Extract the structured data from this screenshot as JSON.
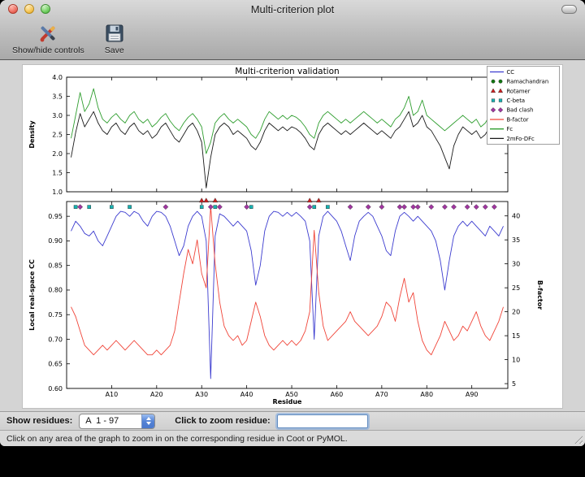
{
  "window": {
    "title": "Multi-criterion plot"
  },
  "toolbar": {
    "show_hide_label": "Show/hide controls",
    "save_label": "Save"
  },
  "controls": {
    "show_residues_label": "Show residues:",
    "residue_range_value": "A  1 - 97",
    "zoom_label": "Click to zoom residue:",
    "zoom_input_value": ""
  },
  "statusbar": {
    "text": "Click on any area of the graph to zoom in on the corresponding residue in Coot or PyMOL."
  },
  "chart_data": {
    "type": "line",
    "title": "Multi-criterion validation",
    "xlabel": "Residue",
    "xlim": [
      0,
      98
    ],
    "residues": {
      "start": 1,
      "end": 97,
      "chain": "A"
    },
    "xticks": [
      10,
      20,
      30,
      40,
      50,
      60,
      70,
      80,
      90
    ],
    "xtick_labels": [
      "A10",
      "A20",
      "A30",
      "A40",
      "A50",
      "A60",
      "A70",
      "A80",
      "A90"
    ],
    "subplots": [
      {
        "ylabel": "Density",
        "ylim": [
          1.0,
          4.0
        ],
        "yticks": [
          1.0,
          1.5,
          2.0,
          2.5,
          3.0,
          3.5,
          4.0
        ],
        "ytick_labels": [
          "1.0",
          "1.5",
          "2.0",
          "2.5",
          "3.0",
          "3.5",
          "4.0"
        ],
        "series": [
          {
            "name": "Fc",
            "color": "#2f9e2f",
            "axis": "left",
            "values": [
              2.4,
              3.0,
              3.6,
              3.1,
              3.3,
              3.7,
              3.2,
              2.9,
              2.8,
              2.95,
              3.05,
              2.9,
              2.8,
              3.0,
              3.1,
              2.9,
              2.8,
              2.9,
              2.7,
              2.8,
              2.95,
              3.05,
              2.85,
              2.7,
              2.6,
              2.8,
              2.95,
              3.05,
              2.9,
              2.7,
              2.0,
              2.3,
              2.8,
              2.95,
              3.05,
              2.9,
              2.8,
              2.9,
              2.8,
              2.7,
              2.5,
              2.4,
              2.6,
              2.9,
              3.1,
              3.0,
              2.9,
              3.0,
              2.9,
              3.0,
              2.95,
              2.85,
              2.7,
              2.5,
              2.4,
              2.8,
              3.0,
              3.1,
              3.0,
              2.9,
              2.8,
              2.9,
              2.8,
              2.9,
              3.0,
              3.1,
              3.0,
              2.9,
              2.8,
              2.9,
              2.8,
              2.7,
              2.9,
              3.0,
              3.2,
              3.5,
              3.0,
              3.1,
              3.4,
              3.0,
              2.9,
              2.8,
              2.7,
              2.6,
              2.7,
              2.8,
              2.9,
              3.0,
              2.9,
              2.8,
              2.9,
              2.7,
              2.8,
              3.0,
              3.3,
              2.9,
              3.1
            ]
          },
          {
            "name": "2mFo-DFc",
            "color": "#1a1a1a",
            "axis": "left",
            "values": [
              1.9,
              2.55,
              3.05,
              2.7,
              2.9,
              3.1,
              2.8,
              2.6,
              2.5,
              2.7,
              2.8,
              2.6,
              2.5,
              2.7,
              2.8,
              2.6,
              2.5,
              2.6,
              2.4,
              2.5,
              2.7,
              2.8,
              2.6,
              2.4,
              2.3,
              2.5,
              2.7,
              2.8,
              2.6,
              2.3,
              1.1,
              1.9,
              2.5,
              2.7,
              2.8,
              2.7,
              2.5,
              2.6,
              2.5,
              2.4,
              2.2,
              2.1,
              2.3,
              2.6,
              2.8,
              2.7,
              2.6,
              2.7,
              2.6,
              2.7,
              2.65,
              2.55,
              2.4,
              2.2,
              2.1,
              2.5,
              2.7,
              2.8,
              2.7,
              2.6,
              2.5,
              2.6,
              2.5,
              2.6,
              2.7,
              2.8,
              2.7,
              2.6,
              2.5,
              2.6,
              2.5,
              2.4,
              2.6,
              2.7,
              2.9,
              3.1,
              2.7,
              2.8,
              3.0,
              2.7,
              2.6,
              2.4,
              2.2,
              1.9,
              1.6,
              2.2,
              2.5,
              2.7,
              2.6,
              2.5,
              2.6,
              2.4,
              2.5,
              2.7,
              3.0,
              2.6,
              2.8
            ]
          }
        ]
      },
      {
        "ylabel": "Local real-space CC",
        "ylim": [
          0.6,
          0.98
        ],
        "yticks": [
          0.6,
          0.65,
          0.7,
          0.75,
          0.8,
          0.85,
          0.9,
          0.95
        ],
        "ytick_labels": [
          "0.60",
          "0.65",
          "0.70",
          "0.75",
          "0.80",
          "0.85",
          "0.90",
          "0.95"
        ],
        "right_ylabel": "B-factor",
        "right_ylim": [
          4,
          43
        ],
        "right_yticks": [
          5,
          10,
          15,
          20,
          25,
          30,
          35,
          40
        ],
        "right_ytick_labels": [
          "5",
          "10",
          "15",
          "20",
          "25",
          "30",
          "35",
          "40"
        ],
        "series": [
          {
            "name": "CC",
            "color": "#3b3bcf",
            "axis": "left",
            "values": [
              0.92,
              0.94,
              0.93,
              0.915,
              0.91,
              0.92,
              0.9,
              0.89,
              0.91,
              0.93,
              0.95,
              0.96,
              0.958,
              0.95,
              0.96,
              0.955,
              0.94,
              0.93,
              0.95,
              0.96,
              0.958,
              0.95,
              0.93,
              0.9,
              0.87,
              0.89,
              0.93,
              0.95,
              0.96,
              0.95,
              0.9,
              0.62,
              0.91,
              0.955,
              0.95,
              0.94,
              0.93,
              0.94,
              0.93,
              0.92,
              0.88,
              0.81,
              0.85,
              0.92,
              0.95,
              0.96,
              0.958,
              0.95,
              0.958,
              0.95,
              0.958,
              0.95,
              0.94,
              0.9,
              0.7,
              0.91,
              0.95,
              0.96,
              0.95,
              0.94,
              0.92,
              0.89,
              0.86,
              0.91,
              0.94,
              0.95,
              0.958,
              0.95,
              0.93,
              0.91,
              0.88,
              0.87,
              0.92,
              0.95,
              0.958,
              0.95,
              0.94,
              0.95,
              0.94,
              0.93,
              0.92,
              0.9,
              0.86,
              0.8,
              0.86,
              0.91,
              0.93,
              0.94,
              0.93,
              0.94,
              0.93,
              0.92,
              0.91,
              0.93,
              0.92,
              0.91,
              0.93
            ]
          },
          {
            "name": "B-factor",
            "color": "#f04438",
            "axis": "right",
            "values": [
              21,
              19,
              16,
              13,
              12,
              11,
              12,
              13,
              12,
              13,
              14,
              13,
              12,
              13,
              14,
              13,
              12,
              11,
              11,
              12,
              11,
              12,
              13,
              16,
              22,
              28,
              33,
              30,
              35,
              28,
              25,
              42,
              30,
              22,
              17,
              15,
              14,
              15,
              13,
              14,
              18,
              22,
              19,
              15,
              13,
              12,
              13,
              14,
              13,
              14,
              13,
              14,
              16,
              20,
              37,
              24,
              17,
              14,
              15,
              16,
              17,
              18,
              20,
              18,
              17,
              16,
              15,
              16,
              17,
              19,
              22,
              21,
              18,
              23,
              27,
              22,
              24,
              18,
              14,
              12,
              11,
              13,
              15,
              18,
              16,
              14,
              15,
              17,
              16,
              18,
              20,
              17,
              15,
              14,
              16,
              18,
              21
            ]
          }
        ],
        "markers": [
          {
            "name": "Rotamer",
            "shape": "triangle",
            "color": "#cf1f1f",
            "y": 0.982,
            "residues": [
              30,
              31,
              33,
              54,
              56
            ]
          },
          {
            "name": "C-beta",
            "shape": "square",
            "color": "#17b2b2",
            "y": 0.969,
            "residues": [
              2,
              5,
              10,
              14,
              30,
              33,
              41,
              55,
              58
            ]
          },
          {
            "name": "Bad clash",
            "shape": "diamond",
            "color": "#a136a1",
            "y": 0.969,
            "residues": [
              3,
              22,
              32,
              34,
              40,
              54,
              63,
              67,
              70,
              74,
              75,
              77,
              78,
              81,
              84,
              86,
              89,
              91,
              93,
              95
            ]
          }
        ]
      }
    ],
    "legend": {
      "position": "upper right",
      "entries": [
        {
          "label": "CC",
          "type": "line",
          "color": "#3b3bcf"
        },
        {
          "label": "Ramachandran",
          "type": "marker",
          "shape": "circle",
          "color": "#117711"
        },
        {
          "label": "Rotamer",
          "type": "marker",
          "shape": "triangle",
          "color": "#cf1f1f"
        },
        {
          "label": "C-beta",
          "type": "marker",
          "shape": "square",
          "color": "#17b2b2"
        },
        {
          "label": "Bad clash",
          "type": "marker",
          "shape": "diamond",
          "color": "#a136a1"
        },
        {
          "label": "B-factor",
          "type": "line",
          "color": "#f04438"
        },
        {
          "label": "Fc",
          "type": "line",
          "color": "#2f9e2f"
        },
        {
          "label": "2mFo-DFc",
          "type": "line",
          "color": "#1a1a1a"
        }
      ]
    }
  }
}
